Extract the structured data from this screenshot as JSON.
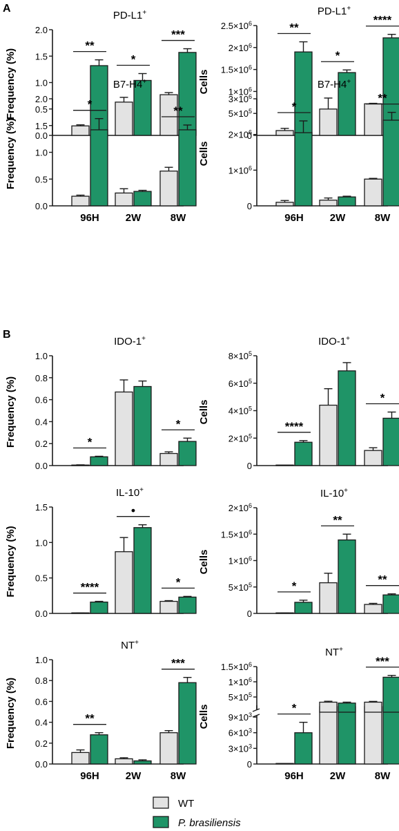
{
  "panel_labels": [
    "A",
    "B"
  ],
  "legend": [
    {
      "label": "WT",
      "color": "#e3e3e3"
    },
    {
      "label": "P. brasiliensis",
      "color": "#1f9467",
      "italic": true
    }
  ],
  "group_colors": {
    "wt": "#e3e3e3",
    "pb": "#1f9467",
    "stroke": "#1a1a1a"
  },
  "chart_data": [
    {
      "id": "a1",
      "type": "bar",
      "title": "PD-L1+",
      "ylabel": "Frequency (%)",
      "categories": [
        "96H",
        "2W",
        "8W"
      ],
      "show_xtick_labels": false,
      "ylim": [
        0,
        2.0
      ],
      "yticks": [
        {
          "v": 0,
          "label": "0.0"
        },
        {
          "v": 0.5,
          "label": "0.5"
        },
        {
          "v": 1.0,
          "label": "1.0"
        },
        {
          "v": 1.5,
          "label": "1.5"
        },
        {
          "v": 2.0,
          "label": "2.0"
        }
      ],
      "series": [
        {
          "name": "WT",
          "values": [
            0.18,
            0.63,
            0.77
          ],
          "errors": [
            0.02,
            0.09,
            0.04
          ]
        },
        {
          "name": "P. brasiliensis",
          "values": [
            1.32,
            1.04,
            1.57
          ],
          "errors": [
            0.11,
            0.13,
            0.07
          ]
        }
      ],
      "significance": [
        "**",
        "*",
        "***"
      ]
    },
    {
      "id": "a2",
      "type": "bar",
      "title": "PD-L1+",
      "ylabel": "Cells",
      "categories": [
        "96H",
        "2W",
        "8W"
      ],
      "show_xtick_labels": false,
      "ylim": [
        0,
        2500000
      ],
      "yticks": [
        {
          "v": 0,
          "label": "0"
        },
        {
          "v": 500000,
          "label": "5×10",
          "exp": "5"
        },
        {
          "v": 1000000,
          "label": "1×10",
          "exp": "6"
        },
        {
          "v": 1500000,
          "label": "1.5×10",
          "exp": "6"
        },
        {
          "v": 2000000,
          "label": "2×10",
          "exp": "6"
        },
        {
          "v": 2500000,
          "label": "2.5×10",
          "exp": "6"
        }
      ],
      "series": [
        {
          "name": "WT",
          "values": [
            110000,
            600000,
            720000
          ],
          "errors": [
            50000,
            250000,
            10000
          ]
        },
        {
          "name": "P. brasiliensis",
          "values": [
            1900000,
            1430000,
            2220000
          ],
          "errors": [
            230000,
            60000,
            80000
          ]
        }
      ],
      "significance": [
        "**",
        "*",
        "****"
      ]
    },
    {
      "id": "a3",
      "type": "bar",
      "title": "B7-H4+",
      "ylabel": "Frequency (%)",
      "categories": [
        "96H",
        "2W",
        "8W"
      ],
      "show_xtick_labels": true,
      "ylim": [
        0,
        2.0
      ],
      "yticks": [
        {
          "v": 0,
          "label": "0.0"
        },
        {
          "v": 0.5,
          "label": "0.5"
        },
        {
          "v": 1.0,
          "label": "1.0"
        },
        {
          "v": 1.5,
          "label": "1.5"
        },
        {
          "v": 2.0,
          "label": "2.0"
        }
      ],
      "series": [
        {
          "name": "WT",
          "values": [
            0.18,
            0.24,
            0.65
          ],
          "errors": [
            0.02,
            0.08,
            0.07
          ]
        },
        {
          "name": "P. brasiliensis",
          "values": [
            1.42,
            0.27,
            1.42
          ],
          "errors": [
            0.21,
            0.02,
            0.09
          ]
        }
      ],
      "significance": [
        "*",
        "",
        "**"
      ]
    },
    {
      "id": "a4",
      "type": "bar",
      "title": "B7-H4+",
      "ylabel": "Cells",
      "categories": [
        "96H",
        "2W",
        "8W"
      ],
      "show_xtick_labels": true,
      "ylim": [
        0,
        3000000
      ],
      "yticks": [
        {
          "v": 0,
          "label": "0"
        },
        {
          "v": 1000000,
          "label": "1×10",
          "exp": "6"
        },
        {
          "v": 2000000,
          "label": "2×10",
          "exp": "6"
        },
        {
          "v": 3000000,
          "label": "3×10",
          "exp": "6"
        }
      ],
      "series": [
        {
          "name": "WT",
          "values": [
            100000,
            160000,
            750000
          ],
          "errors": [
            50000,
            60000,
            20000
          ]
        },
        {
          "name": "P. brasiliensis",
          "values": [
            2050000,
            250000,
            2400000
          ],
          "errors": [
            330000,
            20000,
            220000
          ]
        }
      ],
      "significance": [
        "*",
        "",
        "**"
      ]
    },
    {
      "id": "b1",
      "type": "bar",
      "title": "IDO-1+",
      "ylabel": "Frequency (%)",
      "categories": [
        "96H",
        "2W",
        "8W"
      ],
      "show_xtick_labels": false,
      "ylim": [
        0,
        1.0
      ],
      "yticks": [
        {
          "v": 0,
          "label": "0.0"
        },
        {
          "v": 0.2,
          "label": "0.2"
        },
        {
          "v": 0.4,
          "label": "0.4"
        },
        {
          "v": 0.6,
          "label": "0.6"
        },
        {
          "v": 0.8,
          "label": "0.8"
        },
        {
          "v": 1.0,
          "label": "1.0"
        }
      ],
      "series": [
        {
          "name": "WT",
          "values": [
            0.005,
            0.67,
            0.11
          ],
          "errors": [
            0.002,
            0.11,
            0.015
          ]
        },
        {
          "name": "P. brasiliensis",
          "values": [
            0.08,
            0.72,
            0.22
          ],
          "errors": [
            0.005,
            0.05,
            0.03
          ]
        }
      ],
      "significance": [
        "*",
        "",
        "*"
      ]
    },
    {
      "id": "b2",
      "type": "bar",
      "title": "IDO-1+",
      "ylabel": "Cells",
      "categories": [
        "96H",
        "2W",
        "8W"
      ],
      "show_xtick_labels": false,
      "ylim": [
        0,
        800000
      ],
      "yticks": [
        {
          "v": 0,
          "label": "0"
        },
        {
          "v": 200000,
          "label": "2×10",
          "exp": "5"
        },
        {
          "v": 400000,
          "label": "4×10",
          "exp": "5"
        },
        {
          "v": 600000,
          "label": "6×10",
          "exp": "5"
        },
        {
          "v": 800000,
          "label": "8×10",
          "exp": "5"
        }
      ],
      "series": [
        {
          "name": "WT",
          "values": [
            1000,
            440000,
            110000
          ],
          "errors": [
            500,
            120000,
            20000
          ]
        },
        {
          "name": "P. brasiliensis",
          "values": [
            170000,
            690000,
            345000
          ],
          "errors": [
            12000,
            60000,
            45000
          ]
        }
      ],
      "significance": [
        "****",
        "",
        "*"
      ]
    },
    {
      "id": "b3",
      "type": "bar",
      "title": "IL-10+",
      "ylabel": "Frequency (%)",
      "categories": [
        "96H",
        "2W",
        "8W"
      ],
      "show_xtick_labels": false,
      "ylim": [
        0,
        1.5
      ],
      "yticks": [
        {
          "v": 0,
          "label": "0.0"
        },
        {
          "v": 0.5,
          "label": "0.5"
        },
        {
          "v": 1.0,
          "label": "1.0"
        },
        {
          "v": 1.5,
          "label": "1.5"
        }
      ],
      "series": [
        {
          "name": "WT",
          "values": [
            0.005,
            0.87,
            0.17
          ],
          "errors": [
            0.002,
            0.2,
            0.01
          ]
        },
        {
          "name": "P. brasiliensis",
          "values": [
            0.16,
            1.21,
            0.23
          ],
          "errors": [
            0.01,
            0.04,
            0.01
          ]
        }
      ],
      "significance": [
        "****",
        "•",
        "*"
      ]
    },
    {
      "id": "b4",
      "type": "bar",
      "title": "IL-10+",
      "ylabel": "Cells",
      "categories": [
        "96H",
        "2W",
        "8W"
      ],
      "show_xtick_labels": false,
      "ylim": [
        0,
        2000000
      ],
      "yticks": [
        {
          "v": 0,
          "label": "0"
        },
        {
          "v": 500000,
          "label": "5×10",
          "exp": "5"
        },
        {
          "v": 1000000,
          "label": "1×10",
          "exp": "6"
        },
        {
          "v": 1500000,
          "label": "1.5×10",
          "exp": "6"
        },
        {
          "v": 2000000,
          "label": "2×10",
          "exp": "6"
        }
      ],
      "series": [
        {
          "name": "WT",
          "values": [
            5000,
            580000,
            170000
          ],
          "errors": [
            3000,
            180000,
            20000
          ]
        },
        {
          "name": "P. brasiliensis",
          "values": [
            210000,
            1390000,
            350000
          ],
          "errors": [
            40000,
            110000,
            20000
          ]
        }
      ],
      "significance": [
        "*",
        "**",
        "**"
      ]
    },
    {
      "id": "b5",
      "type": "bar",
      "title": "NT+",
      "ylabel": "Frequency (%)",
      "categories": [
        "96H",
        "2W",
        "8W"
      ],
      "show_xtick_labels": true,
      "ylim": [
        0,
        1.0
      ],
      "yticks": [
        {
          "v": 0,
          "label": "0.0"
        },
        {
          "v": 0.2,
          "label": "0.2"
        },
        {
          "v": 0.4,
          "label": "0.4"
        },
        {
          "v": 0.6,
          "label": "0.6"
        },
        {
          "v": 0.8,
          "label": "0.8"
        },
        {
          "v": 1.0,
          "label": "1.0"
        }
      ],
      "series": [
        {
          "name": "WT",
          "values": [
            0.11,
            0.05,
            0.3
          ],
          "errors": [
            0.025,
            0.01,
            0.02
          ]
        },
        {
          "name": "P. brasiliensis",
          "values": [
            0.28,
            0.03,
            0.78
          ],
          "errors": [
            0.02,
            0.01,
            0.05
          ]
        }
      ],
      "significance": [
        "**",
        "",
        "***"
      ]
    },
    {
      "id": "b6",
      "type": "bar",
      "title": "NT+",
      "ylabel": "Cells",
      "categories": [
        "96H",
        "2W",
        "8W"
      ],
      "show_xtick_labels": true,
      "scale": "broken",
      "ylim_lower": [
        0,
        11000
      ],
      "ylim_upper": [
        0,
        1500000
      ],
      "yticks": [
        {
          "v": 0,
          "label": "0"
        },
        {
          "v": 3000,
          "label": "3×10",
          "exp": "3"
        },
        {
          "v": 6000,
          "label": "6×10",
          "exp": "3"
        },
        {
          "v": 9000,
          "label": "9×10",
          "exp": "3"
        },
        {
          "v": 500000,
          "label": "5×10",
          "exp": "5"
        },
        {
          "v": 1000000,
          "label": "1×10",
          "exp": "6"
        },
        {
          "v": 1500000,
          "label": "1.5×10",
          "exp": "6"
        }
      ],
      "series": [
        {
          "name": "WT",
          "values": [
            0,
            330000,
            330000
          ],
          "errors": [
            0,
            30000,
            25000
          ]
        },
        {
          "name": "P. brasiliensis",
          "values": [
            6000,
            300000,
            1150000
          ],
          "errors": [
            2000,
            30000,
            60000
          ]
        }
      ],
      "significance": [
        "*",
        "",
        "***"
      ]
    }
  ]
}
